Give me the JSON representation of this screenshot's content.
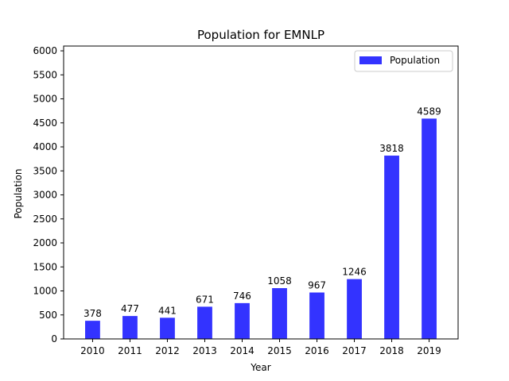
{
  "chart_data": {
    "type": "bar",
    "title": "Population for EMNLP",
    "xlabel": "Year",
    "ylabel": "Population",
    "categories": [
      "2010",
      "2011",
      "2012",
      "2013",
      "2014",
      "2015",
      "2016",
      "2017",
      "2018",
      "2019"
    ],
    "series": [
      {
        "name": "Population",
        "values": [
          378,
          477,
          441,
          671,
          746,
          1058,
          967,
          1246,
          3818,
          4589
        ],
        "color": "#3333ff"
      }
    ],
    "ylim": [
      0,
      6100
    ],
    "yticks": [
      0,
      500,
      1000,
      1500,
      2000,
      2500,
      3000,
      3500,
      4000,
      4500,
      5000,
      5500,
      6000
    ],
    "legend_position": "top-right",
    "grid": false,
    "data_labels": true
  }
}
